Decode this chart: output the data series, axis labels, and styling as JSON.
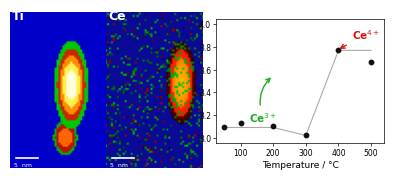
{
  "scatter_x": [
    50,
    100,
    200,
    300,
    400,
    500
  ],
  "scatter_y": [
    3.09,
    3.13,
    3.1,
    3.02,
    3.77,
    3.67
  ],
  "line_x": [
    50,
    100,
    200,
    300,
    400,
    500
  ],
  "line_y": [
    3.09,
    3.09,
    3.09,
    3.02,
    3.77,
    3.77
  ],
  "dot_color": "#111111",
  "line_color": "#aaaaaa",
  "xlim": [
    25,
    540
  ],
  "ylim": [
    2.95,
    4.05
  ],
  "yticks": [
    3.0,
    3.2,
    3.4,
    3.6,
    3.8,
    4.0
  ],
  "xticks": [
    100,
    200,
    300,
    400,
    500
  ],
  "xlabel": "Temperature / °C",
  "ce4_label": "Ce$^{4+}$",
  "ce3_label": "Ce$^{3+}$",
  "ce4_color": "#dd1111",
  "ce3_color": "#22aa22"
}
